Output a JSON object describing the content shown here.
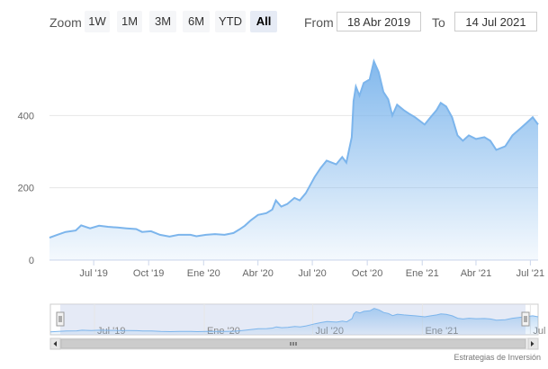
{
  "toolbar": {
    "zoom_label": "Zoom",
    "buttons": [
      "1W",
      "1M",
      "3M",
      "6M",
      "YTD",
      "All"
    ],
    "active_button": "All",
    "from_label": "From",
    "from_value": "18 Abr 2019",
    "to_label": "To",
    "to_value": "14 Jul 2021"
  },
  "credit": "Estrategias de Inversión",
  "colors": {
    "line": "#7cb5ec",
    "fill_top": "#7cb5ec",
    "grid": "#e6e6e6",
    "navigator_mask": "#cfd9ef"
  },
  "chart_data": {
    "type": "area",
    "title": "",
    "xlabel": "",
    "ylabel": "",
    "ylim": [
      0,
      600
    ],
    "y_ticks": [
      0,
      200,
      400
    ],
    "x_range": [
      "2019-04-18",
      "2021-07-14"
    ],
    "x_ticks": [
      {
        "label": "Jul '19",
        "date": "2019-07-01"
      },
      {
        "label": "Oct '19",
        "date": "2019-10-01"
      },
      {
        "label": "Ene '20",
        "date": "2020-01-01"
      },
      {
        "label": "Abr '20",
        "date": "2020-04-01"
      },
      {
        "label": "Jul '20",
        "date": "2020-07-01"
      },
      {
        "label": "Oct '20",
        "date": "2020-10-01"
      },
      {
        "label": "Ene '21",
        "date": "2021-01-01"
      },
      {
        "label": "Abr '21",
        "date": "2021-04-01"
      },
      {
        "label": "Jul '21",
        "date": "2021-07-01"
      }
    ],
    "navigator_ticks": [
      {
        "label": "Jul '19",
        "date": "2019-07-01"
      },
      {
        "label": "Ene '20",
        "date": "2020-01-01"
      },
      {
        "label": "Jul '20",
        "date": "2020-07-01"
      },
      {
        "label": "Ene '21",
        "date": "2021-01-01"
      },
      {
        "label": "Jul '21",
        "date": "2021-07-01"
      }
    ],
    "grid": true,
    "series": [
      {
        "points": [
          [
            "2019-04-18",
            62
          ],
          [
            "2019-05-01",
            70
          ],
          [
            "2019-05-15",
            78
          ],
          [
            "2019-06-01",
            82
          ],
          [
            "2019-06-10",
            96
          ],
          [
            "2019-06-25",
            88
          ],
          [
            "2019-07-10",
            95
          ],
          [
            "2019-07-25",
            92
          ],
          [
            "2019-08-10",
            90
          ],
          [
            "2019-08-25",
            88
          ],
          [
            "2019-09-10",
            86
          ],
          [
            "2019-09-20",
            78
          ],
          [
            "2019-10-05",
            80
          ],
          [
            "2019-10-20",
            70
          ],
          [
            "2019-11-05",
            65
          ],
          [
            "2019-11-20",
            70
          ],
          [
            "2019-12-10",
            70
          ],
          [
            "2019-12-20",
            66
          ],
          [
            "2020-01-05",
            70
          ],
          [
            "2020-01-20",
            72
          ],
          [
            "2020-02-05",
            70
          ],
          [
            "2020-02-20",
            75
          ],
          [
            "2020-03-01",
            85
          ],
          [
            "2020-03-10",
            95
          ],
          [
            "2020-03-20",
            110
          ],
          [
            "2020-04-01",
            125
          ],
          [
            "2020-04-15",
            130
          ],
          [
            "2020-04-25",
            140
          ],
          [
            "2020-05-01",
            165
          ],
          [
            "2020-05-10",
            148
          ],
          [
            "2020-05-20",
            155
          ],
          [
            "2020-06-01",
            172
          ],
          [
            "2020-06-10",
            165
          ],
          [
            "2020-06-20",
            185
          ],
          [
            "2020-06-25",
            200
          ],
          [
            "2020-07-05",
            230
          ],
          [
            "2020-07-15",
            255
          ],
          [
            "2020-07-25",
            275
          ],
          [
            "2020-08-10",
            265
          ],
          [
            "2020-08-20",
            285
          ],
          [
            "2020-08-27",
            270
          ],
          [
            "2020-09-05",
            340
          ],
          [
            "2020-09-08",
            440
          ],
          [
            "2020-09-12",
            480
          ],
          [
            "2020-09-18",
            455
          ],
          [
            "2020-09-25",
            490
          ],
          [
            "2020-10-05",
            500
          ],
          [
            "2020-10-12",
            550
          ],
          [
            "2020-10-20",
            520
          ],
          [
            "2020-10-28",
            465
          ],
          [
            "2020-11-05",
            445
          ],
          [
            "2020-11-12",
            400
          ],
          [
            "2020-11-20",
            430
          ],
          [
            "2020-12-01",
            415
          ],
          [
            "2020-12-10",
            405
          ],
          [
            "2020-12-20",
            395
          ],
          [
            "2021-01-05",
            375
          ],
          [
            "2021-01-15",
            395
          ],
          [
            "2021-01-25",
            415
          ],
          [
            "2021-02-01",
            435
          ],
          [
            "2021-02-10",
            425
          ],
          [
            "2021-02-20",
            395
          ],
          [
            "2021-03-01",
            345
          ],
          [
            "2021-03-10",
            330
          ],
          [
            "2021-03-20",
            345
          ],
          [
            "2021-04-01",
            335
          ],
          [
            "2021-04-15",
            340
          ],
          [
            "2021-04-25",
            330
          ],
          [
            "2021-05-05",
            305
          ],
          [
            "2021-05-20",
            315
          ],
          [
            "2021-06-01",
            345
          ],
          [
            "2021-06-15",
            365
          ],
          [
            "2021-06-25",
            380
          ],
          [
            "2021-07-05",
            395
          ],
          [
            "2021-07-14",
            375
          ]
        ]
      }
    ]
  }
}
